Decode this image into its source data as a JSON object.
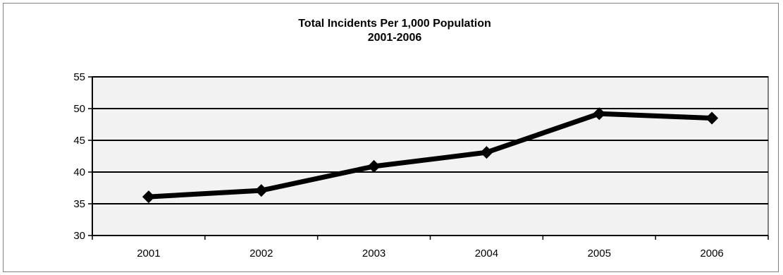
{
  "chart_data": {
    "type": "line",
    "title": [
      "Total Incidents Per 1,000 Population",
      "2001-2006"
    ],
    "xlabel": "",
    "ylabel": "",
    "categories": [
      "2001",
      "2002",
      "2003",
      "2004",
      "2005",
      "2006"
    ],
    "series": [
      {
        "values": [
          36.1,
          37.1,
          40.9,
          43.1,
          49.2,
          48.5
        ]
      }
    ],
    "ylim": [
      30,
      55
    ],
    "yticks": [
      30,
      35,
      40,
      45,
      50,
      55
    ],
    "grid": true,
    "legend": "none",
    "colors": {
      "line": "#000000",
      "plot_background": "#f2f2f2",
      "grid": "#000000"
    }
  }
}
